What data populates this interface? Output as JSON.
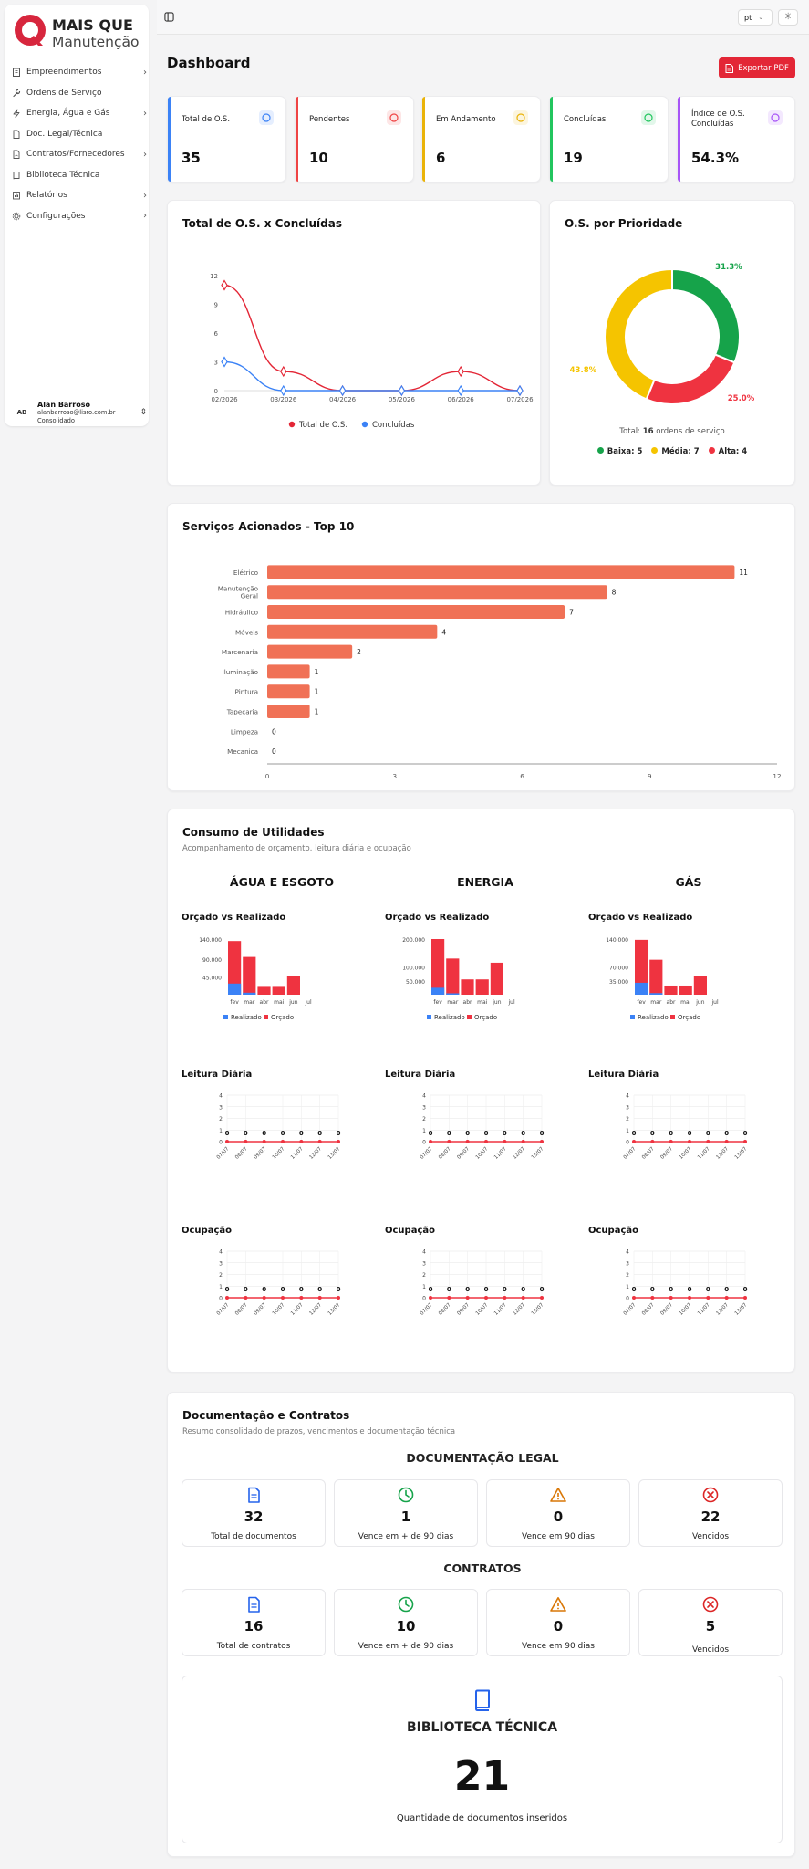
{
  "brand": {
    "line1": "MAIS QUE",
    "line2": "Manutenção"
  },
  "sidebar": {
    "items": [
      {
        "label": "Empreendimentos",
        "icon": "building-icon",
        "chevron": true
      },
      {
        "label": "Ordens de Serviço",
        "icon": "wrench-icon",
        "chevron": false
      },
      {
        "label": "Energia, Água e Gás",
        "icon": "zap-icon",
        "chevron": true
      },
      {
        "label": "Doc. Legal/Técnica",
        "icon": "file-icon",
        "chevron": false
      },
      {
        "label": "Contratos/Fornecedores",
        "icon": "file-signature-icon",
        "chevron": true
      },
      {
        "label": "Biblioteca Técnica",
        "icon": "book-icon",
        "chevron": false
      },
      {
        "label": "Relatórios",
        "icon": "chart-icon",
        "chevron": true
      },
      {
        "label": "Configurações",
        "icon": "gear-icon",
        "chevron": true
      }
    ]
  },
  "user": {
    "initials": "AB",
    "name": "Alan Barroso",
    "email": "alanbarroso@lisro.com.br",
    "scope": "Consolidado"
  },
  "topbar": {
    "language": "pt"
  },
  "page": {
    "title": "Dashboard",
    "export_label": "Exportar PDF"
  },
  "colors": {
    "accent": "#e32636",
    "blue": "#3b82f6",
    "green": "#16a34a",
    "yellow": "#eab308",
    "purple": "#a855f7",
    "orange": "#f07156"
  },
  "stats": [
    {
      "label": "Total de O.S.",
      "value": "35",
      "color": "#3b82f6",
      "icon": "clipboard-icon"
    },
    {
      "label": "Pendentes",
      "value": "10",
      "color": "#ef4444",
      "icon": "clock-icon"
    },
    {
      "label": "Em Andamento",
      "value": "6",
      "color": "#eab308",
      "icon": "refresh-icon"
    },
    {
      "label": "Concluídas",
      "value": "19",
      "color": "#22c55e",
      "icon": "check-circle-icon"
    },
    {
      "label": "Índice de O.S. Concluídas",
      "value": "54.3%",
      "color": "#a855f7",
      "icon": "target-icon"
    }
  ],
  "line_card": {
    "title": "Total de O.S. x Concluídas"
  },
  "donut_card": {
    "title": "O.S. por Prioridade",
    "total_prefix": "Total: ",
    "total_count": "16",
    "total_suffix": " ordens de serviço"
  },
  "bars_card": {
    "title": "Serviços Acionados - Top 10"
  },
  "utilities": {
    "title": "Consumo de Utilidades",
    "subtitle": "Acompanhamento de orçamento, leitura diária e ocupação",
    "columns": [
      {
        "heading": "ÁGUA E ESGOTO",
        "budget_title": "Orçado vs Realizado",
        "reading_title": "Leitura Diária",
        "occupancy_title": "Ocupação"
      },
      {
        "heading": "ENERGIA",
        "budget_title": "Orçado vs Realizado",
        "reading_title": "Leitura Diária",
        "occupancy_title": "Ocupação"
      },
      {
        "heading": "GÁS",
        "budget_title": "Orçado vs Realizado",
        "reading_title": "Leitura Diária",
        "occupancy_title": "Ocupação"
      }
    ]
  },
  "docs": {
    "title": "Documentação e Contratos",
    "subtitle": "Resumo consolidado de prazos, vencimentos e documentação técnica",
    "legal_heading": "DOCUMENTAÇÃO LEGAL",
    "legal": [
      {
        "value": "32",
        "label": "Total de documentos",
        "icon": "document-icon"
      },
      {
        "value": "1",
        "label": "Vence em + de 90 dias",
        "icon": "clock-icon"
      },
      {
        "value": "0",
        "label": "Vence em 90 dias",
        "icon": "warning-icon"
      },
      {
        "value": "22",
        "label": "Vencidos",
        "icon": "x-circle-icon"
      }
    ],
    "contracts_heading": "CONTRATOS",
    "contracts": [
      {
        "value": "16",
        "label": "Total de contratos",
        "icon": "document-icon"
      },
      {
        "value": "10",
        "label": "Vence em + de 90 dias",
        "icon": "clock-icon"
      },
      {
        "value": "0",
        "label": "Vence em 90 dias",
        "icon": "warning-icon"
      },
      {
        "value": "5",
        "label": "Vencidos",
        "icon": "x-circle-icon"
      }
    ],
    "library_heading": "BIBLIOTECA TÉCNICA",
    "library_value": "21",
    "library_label": "Quantidade de documentos inseridos"
  },
  "chart_data": [
    {
      "type": "line",
      "x": [
        "02/2026",
        "03/2026",
        "04/2026",
        "05/2026",
        "06/2026",
        "07/2026"
      ],
      "ylim": [
        0,
        12
      ],
      "yticks": [
        "0",
        "3",
        "6",
        "9",
        "12"
      ],
      "series": [
        {
          "name": "Total de O.S.",
          "color": "#e32636",
          "values": [
            11,
            2,
            0,
            0,
            2,
            0
          ]
        },
        {
          "name": "Concluídas",
          "color": "#3b82f6",
          "values": [
            3,
            0,
            0,
            0,
            0,
            0
          ]
        }
      ]
    },
    {
      "type": "pie",
      "slices": [
        {
          "name": "Baixa",
          "value": 5,
          "label": "31.3%",
          "color": "#16a34a"
        },
        {
          "name": "Alta",
          "value": 4,
          "label": "25.0%",
          "color": "#ef3340"
        },
        {
          "name": "Média",
          "value": 7,
          "label": "43.8%",
          "color": "#f5c400"
        }
      ],
      "legend": [
        {
          "text": "Baixa: 5",
          "color": "#16a34a"
        },
        {
          "text": "Média: 7",
          "color": "#f5c400"
        },
        {
          "text": "Alta: 4",
          "color": "#ef3340"
        }
      ]
    },
    {
      "type": "bar",
      "orientation": "horizontal",
      "categories": [
        "Elétrico",
        "Manutenção Geral",
        "Hidráulico",
        "Móveis",
        "Marcenaria",
        "Iluminação",
        "Pintura",
        "Tapeçaria",
        "Limpeza",
        "Mecanica"
      ],
      "values": [
        11,
        8,
        7,
        4,
        2,
        1,
        1,
        1,
        0,
        0
      ],
      "xlim": [
        0,
        12
      ],
      "xticks": [
        "0",
        "3",
        "6",
        "9",
        "12"
      ]
    },
    {
      "type": "bar",
      "stacked": true,
      "months": [
        "fev",
        "mar",
        "abr",
        "mai",
        "jun",
        "jul"
      ],
      "groups": [
        {
          "yticks": [
            "140.000",
            "90.000",
            "45.000"
          ],
          "ymax": 140000,
          "realizado": [
            28000,
            5000,
            0,
            0,
            0,
            0
          ],
          "orcado": [
            135000,
            95000,
            22000,
            22000,
            48000,
            0
          ]
        },
        {
          "yticks": [
            "200.000",
            "100.000",
            "50.000"
          ],
          "ymax": 200000,
          "realizado": [
            25000,
            5000,
            0,
            0,
            0,
            0
          ],
          "orcado": [
            200000,
            130000,
            55000,
            55000,
            115000,
            0
          ]
        },
        {
          "yticks": [
            "140.000",
            "70.000",
            "35.000"
          ],
          "ymax": 140000,
          "realizado": [
            30000,
            4000,
            0,
            0,
            0,
            0
          ],
          "orcado": [
            138000,
            88000,
            23000,
            23000,
            47000,
            0
          ]
        }
      ],
      "legend": [
        {
          "text": "Realizado",
          "color": "#3b82f6"
        },
        {
          "text": "Orçado",
          "color": "#ef3340"
        }
      ]
    },
    {
      "type": "line",
      "x": [
        "07/07",
        "08/07",
        "09/07",
        "10/07",
        "11/07",
        "12/07",
        "13/07"
      ],
      "ylim": [
        0,
        4
      ],
      "yticks": [
        "0",
        "1",
        "2",
        "3",
        "4"
      ],
      "values": [
        0,
        0,
        0,
        0,
        0,
        0,
        0
      ]
    }
  ]
}
